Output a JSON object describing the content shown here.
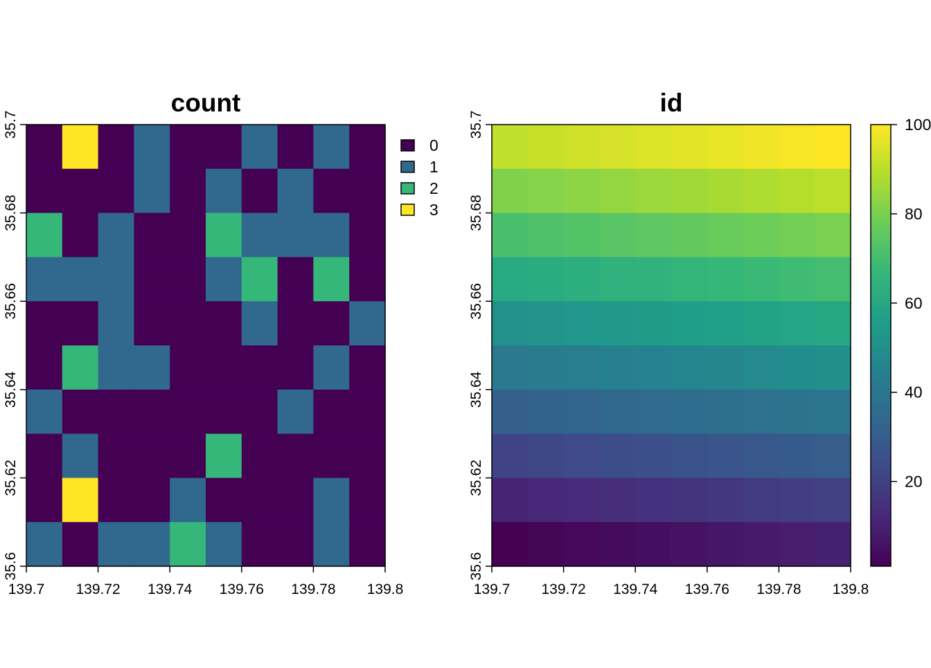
{
  "chart_data": [
    {
      "type": "heatmap",
      "title": "count",
      "xlabel": "",
      "ylabel": "",
      "xlim": [
        139.7,
        139.8
      ],
      "ylim": [
        35.6,
        35.7
      ],
      "x_ticks": [
        "139.7",
        "139.72",
        "139.74",
        "139.76",
        "139.78",
        "139.8"
      ],
      "y_ticks": [
        "35.6",
        "35.62",
        "35.64",
        "35.66",
        "35.68",
        "35.7"
      ],
      "ncols": 10,
      "nrows": 10,
      "legend": {
        "type": "categorical",
        "position": "right",
        "entries": [
          {
            "label": "0",
            "color": "#440154"
          },
          {
            "label": "1",
            "color": "#31688E"
          },
          {
            "label": "2",
            "color": "#35B779"
          },
          {
            "label": "3",
            "color": "#FDE725"
          }
        ]
      },
      "values_rows_top_to_bottom": [
        [
          0,
          3,
          0,
          1,
          0,
          0,
          1,
          0,
          1,
          0
        ],
        [
          0,
          0,
          0,
          1,
          0,
          1,
          0,
          1,
          0,
          0
        ],
        [
          2,
          0,
          1,
          0,
          0,
          2,
          1,
          1,
          1,
          0
        ],
        [
          1,
          1,
          1,
          0,
          0,
          1,
          2,
          0,
          2,
          0
        ],
        [
          0,
          0,
          1,
          0,
          0,
          0,
          1,
          0,
          0,
          1
        ],
        [
          0,
          2,
          1,
          1,
          0,
          0,
          0,
          0,
          1,
          0
        ],
        [
          1,
          0,
          0,
          0,
          0,
          0,
          0,
          1,
          0,
          0
        ],
        [
          0,
          1,
          0,
          0,
          0,
          2,
          0,
          0,
          0,
          0
        ],
        [
          0,
          3,
          0,
          0,
          1,
          0,
          0,
          0,
          1,
          0
        ],
        [
          1,
          0,
          1,
          1,
          2,
          1,
          0,
          0,
          1,
          0
        ]
      ]
    },
    {
      "type": "heatmap",
      "title": "id",
      "xlabel": "",
      "ylabel": "",
      "xlim": [
        139.7,
        139.8
      ],
      "ylim": [
        35.6,
        35.7
      ],
      "x_ticks": [
        "139.7",
        "139.72",
        "139.74",
        "139.76",
        "139.78",
        "139.8"
      ],
      "y_ticks": [
        "35.6",
        "35.62",
        "35.64",
        "35.66",
        "35.68",
        "35.7"
      ],
      "ncols": 10,
      "nrows": 10,
      "id_rule": "cell id = row_from_bottom * 10 + col + 1 (1..100)",
      "colorbar": {
        "position": "right",
        "range": [
          1,
          100
        ],
        "ticks": [
          "20",
          "40",
          "60",
          "80",
          "100"
        ],
        "palette": [
          "#440154",
          "#482878",
          "#3E4A89",
          "#31688E",
          "#26828E",
          "#1F9E89",
          "#35B779",
          "#6DCD59",
          "#B4DE2C",
          "#FDE725"
        ]
      }
    }
  ]
}
